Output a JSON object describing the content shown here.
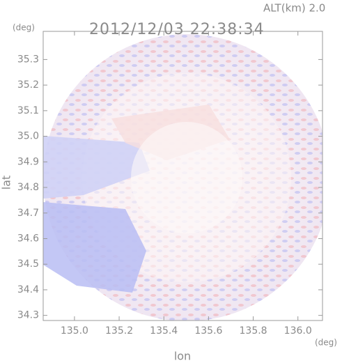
{
  "chart_data": {
    "type": "radar-map",
    "subtitle": "ALT(km) 2.0",
    "title": "2012/12/03 22:38:34",
    "x_label": "lon",
    "y_label": "lat",
    "x_unit": "(deg)",
    "y_unit": "(deg)",
    "xlim": [
      134.86,
      136.11
    ],
    "ylim": [
      34.28,
      35.41
    ],
    "xticks": [
      {
        "value": 135,
        "label": "135.0"
      },
      135.2,
      135.4,
      135.6,
      135.8,
      {
        "value": 136,
        "label": "136.0"
      }
    ],
    "yticks": [
      34.3,
      34.4,
      34.5,
      34.6,
      34.7,
      34.8,
      34.9,
      {
        "value": 35,
        "label": "35.0"
      },
      35.1,
      35.2,
      35.3
    ]
  }
}
